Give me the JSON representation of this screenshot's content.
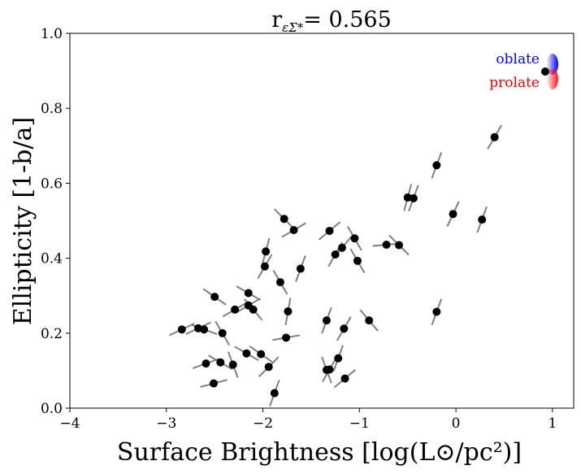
{
  "chart_data": {
    "type": "scatter",
    "title": "r",
    "title_subscript": "εΣ*",
    "title_value": "= 0.565",
    "xlabel": "Surface Brightness [log(L⊙/pc²)]",
    "ylabel": "Ellipticity [1-b/a]",
    "xlim": [
      -4,
      1.22
    ],
    "ylim": [
      0,
      1
    ],
    "xticks": [
      -4,
      -3,
      -2,
      -1,
      0,
      1
    ],
    "yticks": [
      0.0,
      0.2,
      0.4,
      0.6,
      0.8,
      1.0
    ],
    "xtick_labels": [
      "−4",
      "−3",
      "−2",
      "−1",
      "0",
      "1"
    ],
    "ytick_labels": [
      "0.0",
      "0.2",
      "0.4",
      "0.6",
      "0.8",
      "1.0"
    ],
    "grid": false,
    "point_color": "#000000",
    "segment_color": "#808080",
    "legend": {
      "oblate_label": "oblate",
      "prolate_label": "prolate",
      "oblate_color": "#0000ff",
      "prolate_color": "#ff0000",
      "placement": "top-right"
    },
    "points": [
      {
        "x": 0.4,
        "y": 0.723,
        "angle": 60
      },
      {
        "x": -0.2,
        "y": 0.648,
        "angle": 70
      },
      {
        "x": -0.5,
        "y": 0.562,
        "angle": 75
      },
      {
        "x": -0.44,
        "y": 0.56,
        "angle": 70
      },
      {
        "x": -0.03,
        "y": 0.518,
        "angle": 65
      },
      {
        "x": 0.27,
        "y": 0.503,
        "angle": 70
      },
      {
        "x": -1.78,
        "y": 0.505,
        "angle": -45
      },
      {
        "x": -1.68,
        "y": 0.475,
        "angle": 30
      },
      {
        "x": -1.31,
        "y": 0.473,
        "angle": 40
      },
      {
        "x": -1.05,
        "y": 0.453,
        "angle": -60
      },
      {
        "x": -0.72,
        "y": 0.436,
        "angle": 5
      },
      {
        "x": -0.59,
        "y": 0.435,
        "angle": -45
      },
      {
        "x": -1.97,
        "y": 0.418,
        "angle": 75
      },
      {
        "x": -1.18,
        "y": 0.428,
        "angle": 50
      },
      {
        "x": -1.25,
        "y": 0.41,
        "angle": 60
      },
      {
        "x": -1.02,
        "y": 0.393,
        "angle": -60
      },
      {
        "x": -1.98,
        "y": 0.378,
        "angle": 60
      },
      {
        "x": -1.61,
        "y": 0.372,
        "angle": 70
      },
      {
        "x": -1.82,
        "y": 0.336,
        "angle": -60
      },
      {
        "x": -2.15,
        "y": 0.307,
        "angle": -30
      },
      {
        "x": -2.5,
        "y": 0.297,
        "angle": -35
      },
      {
        "x": -2.15,
        "y": 0.274,
        "angle": 30
      },
      {
        "x": -2.29,
        "y": 0.263,
        "angle": 30
      },
      {
        "x": -2.1,
        "y": 0.263,
        "angle": -50
      },
      {
        "x": -1.74,
        "y": 0.258,
        "angle": 80
      },
      {
        "x": -0.2,
        "y": 0.257,
        "angle": 70
      },
      {
        "x": -1.34,
        "y": 0.234,
        "angle": 70
      },
      {
        "x": -0.9,
        "y": 0.234,
        "angle": -50
      },
      {
        "x": -2.84,
        "y": 0.21,
        "angle": 25
      },
      {
        "x": -2.67,
        "y": 0.213,
        "angle": 25
      },
      {
        "x": -2.61,
        "y": 0.21,
        "angle": -20
      },
      {
        "x": -1.16,
        "y": 0.212,
        "angle": 60
      },
      {
        "x": -2.42,
        "y": 0.2,
        "angle": -60
      },
      {
        "x": -1.76,
        "y": 0.188,
        "angle": 10
      },
      {
        "x": -2.17,
        "y": 0.146,
        "angle": -30
      },
      {
        "x": -2.02,
        "y": 0.144,
        "angle": -35
      },
      {
        "x": -1.22,
        "y": 0.133,
        "angle": 70
      },
      {
        "x": -2.59,
        "y": 0.119,
        "angle": 20
      },
      {
        "x": -2.44,
        "y": 0.122,
        "angle": -30
      },
      {
        "x": -2.31,
        "y": 0.116,
        "angle": -70
      },
      {
        "x": -1.94,
        "y": 0.11,
        "angle": 45
      },
      {
        "x": -1.34,
        "y": 0.102,
        "angle": -70
      },
      {
        "x": -1.31,
        "y": 0.103,
        "angle": 60
      },
      {
        "x": -1.15,
        "y": 0.079,
        "angle": 40
      },
      {
        "x": -2.51,
        "y": 0.066,
        "angle": 15
      },
      {
        "x": -1.88,
        "y": 0.04,
        "angle": 70
      }
    ]
  }
}
